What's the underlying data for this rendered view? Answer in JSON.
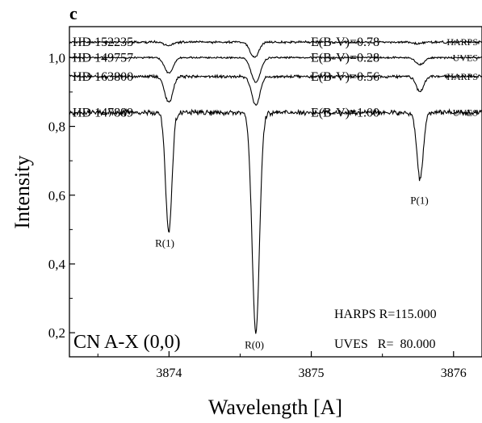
{
  "chart_data": {
    "type": "line",
    "panel_label": "c",
    "xlabel": "Wavelength [A]",
    "ylabel": "Intensity",
    "xlim": [
      3873.3,
      3876.2
    ],
    "ylim": [
      0.13,
      1.09
    ],
    "xticks": [
      {
        "value": 3874,
        "label": "3874"
      },
      {
        "value": 3875,
        "label": "3875"
      },
      {
        "value": 3876,
        "label": "3876"
      }
    ],
    "yticks": [
      {
        "value": 0.2,
        "label": "0,2"
      },
      {
        "value": 0.4,
        "label": "0,4"
      },
      {
        "value": 0.6,
        "label": "0,6"
      },
      {
        "value": 0.8,
        "label": "0,8"
      },
      {
        "value": 1.0,
        "label": "1,0"
      }
    ],
    "series": [
      {
        "name": "HD 152235",
        "instrument": "HARPS",
        "ebv": "E(B-V)=0.78",
        "continuum": 1.045,
        "noise": 0.004,
        "seed": 11,
        "lines": [
          {
            "x": 3873.998,
            "depth": 0.01,
            "w": 0.028
          },
          {
            "x": 3874.6,
            "depth": 0.045,
            "w": 0.03
          },
          {
            "x": 3875.75,
            "depth": 0.005,
            "w": 0.03
          }
        ]
      },
      {
        "name": "HD 149757",
        "instrument": "UVES",
        "ebv": "E(B-V)=0.28",
        "continuum": 1.0,
        "noise": 0.003,
        "seed": 23,
        "lines": [
          {
            "x": 3873.998,
            "depth": 0.045,
            "w": 0.03
          },
          {
            "x": 3874.61,
            "depth": 0.072,
            "w": 0.032
          },
          {
            "x": 3875.764,
            "depth": 0.02,
            "w": 0.03
          }
        ]
      },
      {
        "name": "HD 163800",
        "instrument": "HARPS",
        "ebv": "E(B-V)=0.56",
        "continuum": 0.945,
        "noise": 0.005,
        "seed": 37,
        "lines": [
          {
            "x": 3873.998,
            "depth": 0.075,
            "w": 0.028
          },
          {
            "x": 3874.61,
            "depth": 0.085,
            "w": 0.028
          },
          {
            "x": 3875.764,
            "depth": 0.045,
            "w": 0.026
          }
        ]
      },
      {
        "name": "HD 147889",
        "instrument": "UVES",
        "ebv": "E(B-V)=1.00",
        "continuum": 0.84,
        "noise": 0.009,
        "seed": 53,
        "lines": [
          {
            "x": 3873.998,
            "depth": 0.35,
            "w": 0.022
          },
          {
            "x": 3874.61,
            "depth": 0.64,
            "w": 0.026
          },
          {
            "x": 3875.764,
            "depth": 0.195,
            "w": 0.022
          }
        ]
      }
    ],
    "line_labels": [
      {
        "label": "R(1)",
        "x": 3873.97,
        "y": 0.45
      },
      {
        "label": "R(0)",
        "x": 3874.6,
        "y": 0.155
      },
      {
        "label": "P(1)",
        "x": 3875.76,
        "y": 0.575
      }
    ],
    "annotations": {
      "molecule": "CN A-X (0,0)",
      "harps_res": "HARPS R=115.000",
      "uves_res": "UVES   R=  80.000"
    }
  }
}
